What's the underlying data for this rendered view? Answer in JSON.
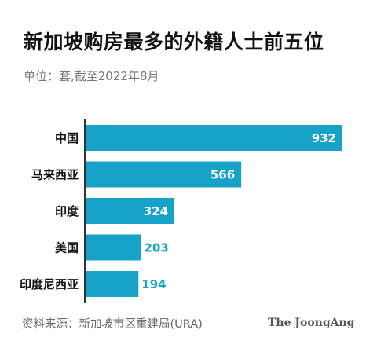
{
  "header": {
    "title": "新加坡购房最多的外籍人士前五位",
    "subtitle": "单位：套,截至2022年8月"
  },
  "footer": {
    "source": "资料来源：新加坡市区重建局(URA)",
    "logo": "The JoongAng"
  },
  "colors": {
    "bar": "#17a2c8",
    "value_inside": "#ffffff",
    "value_outside": "#17a2c8",
    "axis": "#333333"
  },
  "chart_data": {
    "type": "bar",
    "orientation": "horizontal",
    "title": "新加坡购房最多的外籍人士前五位",
    "subtitle": "单位：套,截至2022年8月",
    "categories": [
      "中国",
      "马来西亚",
      "印度",
      "美国",
      "印度尼西亚"
    ],
    "values": [
      932,
      566,
      324,
      203,
      194
    ],
    "xlim": [
      0,
      932
    ],
    "grid": false,
    "legend": "none"
  }
}
